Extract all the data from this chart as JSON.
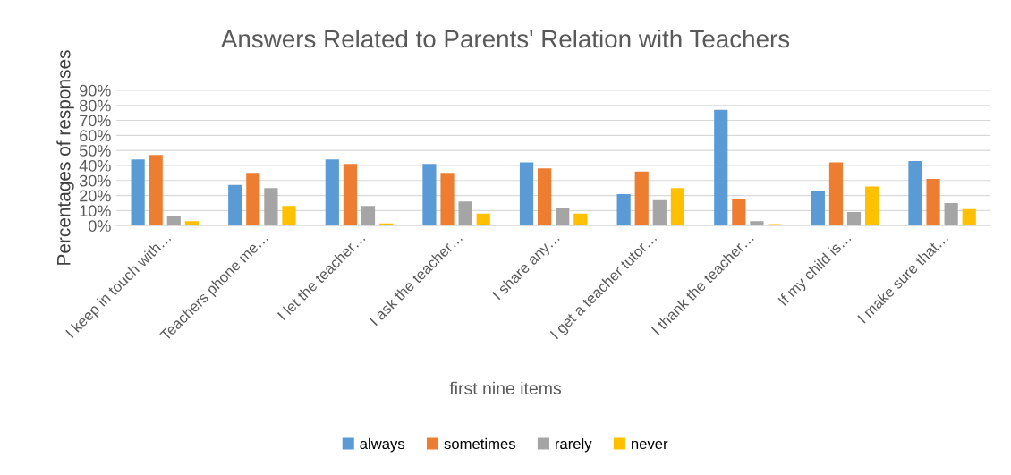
{
  "chart_data": {
    "type": "bar",
    "title": "Answers Related to Parents' Relation with Teachers",
    "xlabel": "first nine items",
    "ylabel": "Percentages of responses",
    "categories": [
      "I keep in touch with…",
      "Teachers phone me…",
      "I let the teacher…",
      "I ask the teacher…",
      "I share any…",
      "I get a teacher tutor…",
      "I thank the teacher…",
      "If my child is…",
      "I make sure that…"
    ],
    "series": [
      {
        "name": "always",
        "color": "#5b9bd5",
        "values": [
          44,
          27,
          44,
          41,
          42,
          21,
          77,
          23,
          43
        ]
      },
      {
        "name": "sometimes",
        "color": "#ed7d31",
        "values": [
          47,
          35,
          41,
          35,
          38,
          36,
          18,
          42,
          31
        ]
      },
      {
        "name": "rarely",
        "color": "#a5a5a5",
        "values": [
          6.5,
          25,
          13,
          16,
          12,
          17,
          3,
          9,
          15
        ]
      },
      {
        "name": "never",
        "color": "#ffc000",
        "values": [
          3,
          13,
          1.5,
          8,
          8,
          25,
          1,
          26,
          11
        ]
      }
    ],
    "ylim": [
      0,
      90
    ],
    "yticks": [
      {
        "value": 0,
        "label": "0%"
      },
      {
        "value": 10,
        "label": "10%"
      },
      {
        "value": 20,
        "label": "20%"
      },
      {
        "value": 30,
        "label": "30%"
      },
      {
        "value": 40,
        "label": "40%"
      },
      {
        "value": 50,
        "label": "50%"
      },
      {
        "value": 60,
        "label": "60%"
      },
      {
        "value": 70,
        "label": "70%"
      },
      {
        "value": 80,
        "label": "80%"
      },
      {
        "value": 90,
        "label": "90%"
      }
    ],
    "grid": "y",
    "legend": "bottom"
  }
}
